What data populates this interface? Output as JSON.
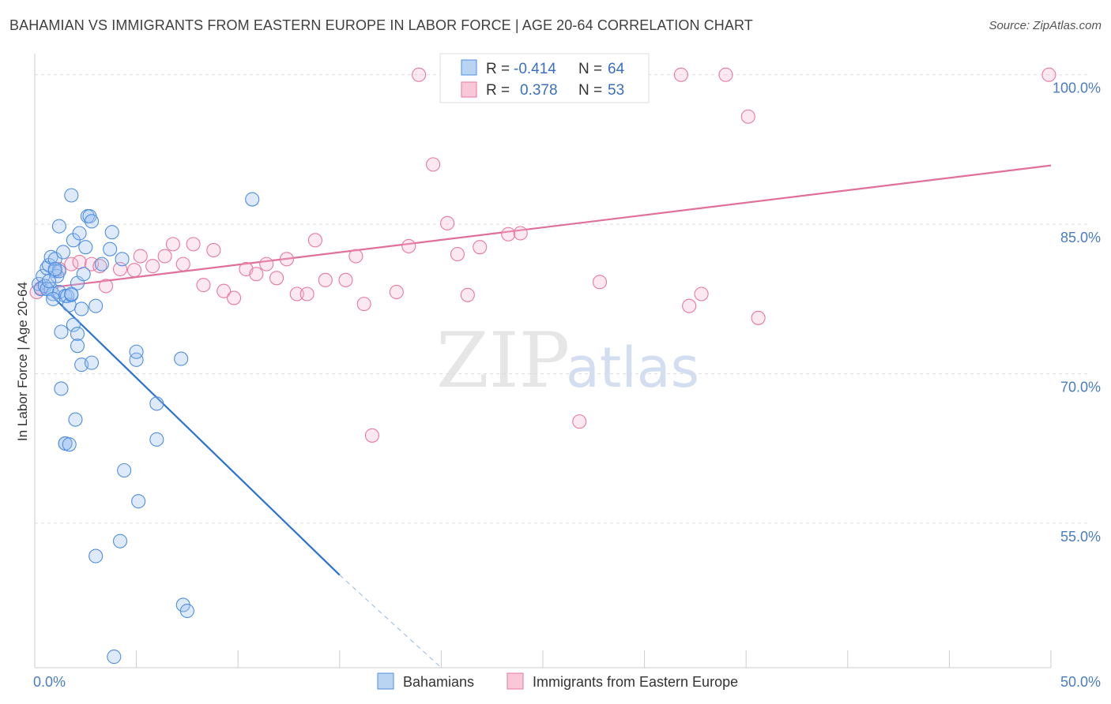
{
  "header": {
    "title": "BAHAMIAN VS IMMIGRANTS FROM EASTERN EUROPE IN LABOR FORCE | AGE 20-64 CORRELATION CHART",
    "source": "Source: ZipAtlas.com"
  },
  "watermark": {
    "zip": "ZIP",
    "atlas": "atlas"
  },
  "colors": {
    "blue": "#4f8fe0",
    "blue_fill": "#b9d3f3",
    "blue_line": "#2a72d4",
    "pink": "#e8799d",
    "pink_fill": "#f8c8d8",
    "pink_line": "#e0709a",
    "grid": "#dddddd",
    "tick_text": "#4a7cc4"
  },
  "legend": {
    "rows": [
      {
        "r_label": "R =",
        "r_value": "-0.414",
        "n_label": "N =",
        "n_value": "64"
      },
      {
        "r_label": "R =",
        "r_value": "0.378",
        "n_label": "N =",
        "n_value": "53"
      }
    ]
  },
  "chart_data": {
    "type": "scatter",
    "title": "BAHAMIAN VS IMMIGRANTS FROM EASTERN EUROPE IN LABOR FORCE | AGE 20-64 CORRELATION CHART",
    "xlabel": "",
    "ylabel": "In Labor Force | Age 20-64",
    "xlim": [
      0,
      50
    ],
    "ylim": [
      40.5,
      101.8
    ],
    "x_tick_labels": [
      {
        "value": 0,
        "label": "0.0%"
      },
      {
        "value": 50,
        "label": "50.0%"
      }
    ],
    "y_tick_labels": [
      {
        "value": 55,
        "label": "55.0%"
      },
      {
        "value": 70,
        "label": "70.0%"
      },
      {
        "value": 85,
        "label": "85.0%"
      },
      {
        "value": 100,
        "label": "100.0%"
      }
    ],
    "grid": true,
    "legend_position": "top-center",
    "series": [
      {
        "name": "Bahamians",
        "color": "#4f8fe0",
        "points": [
          [
            0.2,
            79.0
          ],
          [
            0.3,
            78.5
          ],
          [
            0.4,
            79.8
          ],
          [
            0.5,
            78.8
          ],
          [
            0.6,
            80.6
          ],
          [
            0.7,
            80.9
          ],
          [
            0.8,
            78.5
          ],
          [
            0.8,
            81.7
          ],
          [
            0.9,
            78.0
          ],
          [
            1.0,
            81.5
          ],
          [
            1.0,
            80.3
          ],
          [
            1.1,
            79.8
          ],
          [
            1.2,
            78.2
          ],
          [
            1.2,
            80.3
          ],
          [
            1.2,
            84.8
          ],
          [
            1.3,
            74.2
          ],
          [
            1.3,
            68.5
          ],
          [
            1.4,
            82.2
          ],
          [
            1.5,
            77.8
          ],
          [
            1.5,
            63.0
          ],
          [
            1.5,
            63.0
          ],
          [
            1.6,
            77.8
          ],
          [
            1.7,
            76.9
          ],
          [
            1.7,
            62.9
          ],
          [
            1.8,
            87.9
          ],
          [
            1.8,
            77.9
          ],
          [
            1.8,
            78.0
          ],
          [
            1.9,
            83.4
          ],
          [
            1.9,
            74.9
          ],
          [
            2.0,
            65.4
          ],
          [
            2.1,
            79.1
          ],
          [
            2.1,
            74.0
          ],
          [
            2.1,
            72.8
          ],
          [
            2.2,
            84.1
          ],
          [
            2.3,
            76.5
          ],
          [
            2.3,
            70.9
          ],
          [
            2.4,
            80.0
          ],
          [
            2.5,
            82.7
          ],
          [
            2.6,
            85.8
          ],
          [
            2.7,
            85.8
          ],
          [
            2.8,
            71.1
          ],
          [
            2.8,
            85.3
          ],
          [
            3.0,
            76.8
          ],
          [
            3.0,
            51.7
          ],
          [
            3.3,
            81.0
          ],
          [
            3.7,
            82.5
          ],
          [
            3.8,
            84.2
          ],
          [
            3.9,
            41.6
          ],
          [
            4.2,
            53.2
          ],
          [
            4.3,
            81.5
          ],
          [
            4.4,
            60.3
          ],
          [
            5.0,
            71.4
          ],
          [
            5.0,
            72.2
          ],
          [
            5.1,
            57.2
          ],
          [
            6.0,
            67.0
          ],
          [
            6.0,
            63.4
          ],
          [
            7.2,
            71.5
          ],
          [
            7.3,
            46.8
          ],
          [
            7.5,
            46.2
          ],
          [
            10.7,
            87.5
          ],
          [
            0.6,
            78.5
          ],
          [
            0.7,
            79.3
          ],
          [
            1.0,
            80.5
          ],
          [
            0.9,
            77.5
          ]
        ],
        "trend": {
          "x": [
            0.8,
            15.0
          ],
          "y": [
            77.9,
            49.8
          ]
        },
        "trend_extension": {
          "x": [
            15.0,
            20.0
          ],
          "y": [
            49.8,
            40.5
          ]
        }
      },
      {
        "name": "Immigrants from Eastern Europe",
        "color": "#e8799d",
        "points": [
          [
            0.1,
            78.2
          ],
          [
            0.3,
            78.6
          ],
          [
            1.2,
            80.5
          ],
          [
            1.8,
            81.0
          ],
          [
            2.2,
            81.2
          ],
          [
            2.8,
            81.0
          ],
          [
            3.2,
            80.8
          ],
          [
            3.5,
            78.8
          ],
          [
            4.2,
            80.5
          ],
          [
            4.9,
            80.4
          ],
          [
            5.2,
            81.8
          ],
          [
            5.8,
            80.8
          ],
          [
            6.4,
            81.8
          ],
          [
            6.8,
            83.0
          ],
          [
            7.3,
            81.0
          ],
          [
            7.8,
            83.0
          ],
          [
            8.3,
            78.9
          ],
          [
            8.8,
            82.4
          ],
          [
            9.3,
            78.3
          ],
          [
            9.8,
            77.6
          ],
          [
            10.4,
            80.5
          ],
          [
            10.9,
            80.0
          ],
          [
            11.4,
            81.0
          ],
          [
            11.9,
            79.6
          ],
          [
            12.4,
            81.5
          ],
          [
            12.9,
            78.0
          ],
          [
            13.4,
            78.0
          ],
          [
            13.8,
            83.4
          ],
          [
            14.3,
            79.4
          ],
          [
            15.3,
            79.4
          ],
          [
            15.8,
            81.8
          ],
          [
            16.2,
            77.0
          ],
          [
            16.6,
            63.8
          ],
          [
            17.8,
            78.2
          ],
          [
            18.4,
            82.8
          ],
          [
            18.9,
            100.0
          ],
          [
            19.6,
            91.0
          ],
          [
            20.3,
            85.1
          ],
          [
            20.8,
            82.0
          ],
          [
            21.3,
            77.9
          ],
          [
            21.9,
            82.7
          ],
          [
            23.3,
            84.0
          ],
          [
            23.9,
            84.1
          ],
          [
            25.3,
            100.0
          ],
          [
            26.8,
            65.2
          ],
          [
            27.8,
            79.2
          ],
          [
            31.8,
            100.0
          ],
          [
            32.2,
            76.8
          ],
          [
            32.8,
            78.0
          ],
          [
            34.0,
            100.0
          ],
          [
            35.1,
            95.8
          ],
          [
            35.6,
            75.6
          ],
          [
            49.9,
            100.0
          ]
        ],
        "trend": {
          "x": [
            1.0,
            50.0
          ],
          "y": [
            78.7,
            90.9
          ]
        }
      }
    ]
  }
}
